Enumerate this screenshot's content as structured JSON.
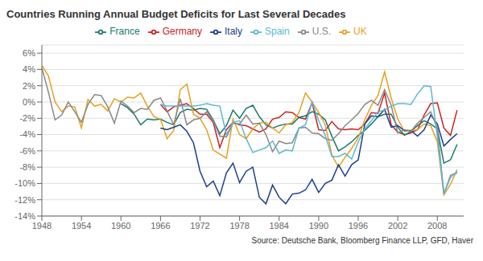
{
  "chart_data": {
    "type": "line",
    "title": "Countries Running Annual Budget Deficits for Last Several Decades",
    "annotations": [
      "Source: Deutsche Bank, Bloomberg Finance LLP, GFD, Haver"
    ],
    "xlim": [
      1948,
      2012
    ],
    "xticks": [
      1948,
      1954,
      1960,
      1966,
      1972,
      1978,
      1984,
      1990,
      1996,
      2002,
      2008
    ],
    "ylim": [
      -14,
      7
    ],
    "yticks": [
      {
        "value": 6,
        "label": "6%"
      },
      {
        "value": 4,
        "label": "4%"
      },
      {
        "value": 2,
        "label": "2%"
      },
      {
        "value": 0,
        "label": "0%"
      },
      {
        "value": -2,
        "label": "-2%"
      },
      {
        "value": -4,
        "label": "-4%"
      },
      {
        "value": -6,
        "label": "-6%"
      },
      {
        "value": -8,
        "label": "-8%"
      },
      {
        "value": -10,
        "label": "-10%"
      },
      {
        "value": -12,
        "label": "-12%"
      },
      {
        "value": -14,
        "label": "-14%"
      }
    ],
    "grid": true,
    "legend": "top",
    "series": [
      {
        "name": "Germany",
        "color": "#CC2222",
        "x": [
          1966,
          1967,
          1968,
          1969,
          1970,
          1971,
          1972,
          1973,
          1974,
          1975,
          1976,
          1977,
          1978,
          1979,
          1980,
          1981,
          1982,
          1983,
          1984,
          1985,
          1986,
          1987,
          1988,
          1989,
          1990,
          1991,
          1992,
          1993,
          1994,
          1995,
          1996,
          1997,
          1998,
          1999,
          2000,
          2001,
          2002,
          2003,
          2004,
          2005,
          2006,
          2007,
          2008,
          2009,
          2010,
          2011
        ],
        "values": [
          -0.3,
          -1.2,
          -0.6,
          -0.4,
          -0.2,
          -0.8,
          -1.5,
          -1.5,
          -2.5,
          -5.6,
          -3.4,
          -2.5,
          -2.8,
          -2.9,
          -3.3,
          -3.7,
          -3.3,
          -2.1,
          -1.9,
          -1.2,
          -1.3,
          -1.9,
          -2.1,
          -0.1,
          -3.4,
          -3.5,
          -2.4,
          -3.3,
          -3.4,
          -3.3,
          -3.4,
          -2.7,
          -1.3,
          -1.4,
          1.1,
          -2.8,
          -3.7,
          -4.0,
          -3.8,
          -3.4,
          -1.6,
          -0.2,
          -0.1,
          -3.2,
          -4.1,
          -1.0
        ]
      },
      {
        "name": "France",
        "color": "#1A7A6E",
        "x": [
          1960,
          1961,
          1962,
          1963,
          1964,
          1965,
          1966,
          1967,
          1968,
          1969,
          1970,
          1971,
          1972,
          1973,
          1974,
          1975,
          1976,
          1977,
          1978,
          1979,
          1980,
          1981,
          1982,
          1983,
          1984,
          1985,
          1986,
          1987,
          1988,
          1989,
          1990,
          1991,
          1992,
          1993,
          1994,
          1995,
          1996,
          1997,
          1998,
          1999,
          2000,
          2001,
          2002,
          2003,
          2004,
          2005,
          2006,
          2007,
          2008,
          2009,
          2010,
          2011
        ],
        "values": [
          -0.2,
          -0.7,
          -1.5,
          -2.8,
          -2.1,
          -2.2,
          -2.1,
          -2.5,
          -2.8,
          -1.3,
          -0.9,
          -1.0,
          -0.8,
          -0.9,
          -2.2,
          -3.9,
          -2.9,
          -1.0,
          -2.0,
          -0.8,
          -0.4,
          -1.8,
          -2.8,
          -3.2,
          -2.9,
          -2.7,
          -2.7,
          -1.9,
          -1.7,
          -1.2,
          -1.5,
          -2.2,
          -4.2,
          -6.0,
          -5.5,
          -4.9,
          -4.1,
          -3.5,
          -2.7,
          -1.8,
          -1.5,
          -1.5,
          -3.1,
          -4.1,
          -3.6,
          -2.9,
          -2.3,
          -2.7,
          -3.3,
          -7.5,
          -7.1,
          -5.2
        ]
      },
      {
        "name": "UK",
        "color": "#E8A020",
        "x": [
          1948,
          1949,
          1950,
          1951,
          1952,
          1953,
          1954,
          1955,
          1956,
          1957,
          1958,
          1959,
          1960,
          1961,
          1962,
          1963,
          1964,
          1965,
          1966,
          1967,
          1968,
          1969,
          1970,
          1971,
          1972,
          1973,
          1974,
          1975,
          1976,
          1977,
          1978,
          1979,
          1980,
          1981,
          1982,
          1983,
          1984,
          1985,
          1986,
          1987,
          1988,
          1989,
          1990,
          1991,
          1992,
          1993,
          1994,
          1995,
          1996,
          1997,
          1998,
          1999,
          2000,
          2001,
          2002,
          2003,
          2004,
          2005,
          2006,
          2007,
          2008,
          2009,
          2010,
          2011
        ],
        "values": [
          4.5,
          3.2,
          0.0,
          -1.2,
          -0.5,
          -0.6,
          -3.2,
          0.3,
          -0.5,
          -0.3,
          -1.1,
          0.4,
          0.0,
          0.6,
          0.5,
          1.1,
          -0.5,
          -1.8,
          -2.1,
          -4.5,
          -3.5,
          1.5,
          2.2,
          -1.5,
          -2.0,
          -3.4,
          -5.9,
          -6.4,
          -6.9,
          -2.1,
          -4.0,
          -4.5,
          -3.3,
          -2.6,
          -2.5,
          -3.2,
          -3.8,
          -2.8,
          -2.5,
          -1.3,
          1.1,
          0.0,
          -1.3,
          -2.8,
          -6.5,
          -8.0,
          -6.8,
          -5.7,
          -4.4,
          -2.2,
          -0.4,
          0.8,
          3.7,
          0.5,
          -2.1,
          -3.6,
          -3.5,
          -3.4,
          -2.7,
          -2.9,
          -4.9,
          -11.4,
          -10.1,
          -8.3
        ]
      },
      {
        "name": "Italy",
        "color": "#1A3F8A",
        "x": [
          1966,
          1967,
          1968,
          1969,
          1970,
          1971,
          1972,
          1973,
          1974,
          1975,
          1976,
          1977,
          1978,
          1979,
          1980,
          1981,
          1982,
          1983,
          1984,
          1985,
          1986,
          1987,
          1988,
          1989,
          1990,
          1991,
          1992,
          1993,
          1994,
          1995,
          1996,
          1997,
          1998,
          1999,
          2000,
          2001,
          2002,
          2003,
          2004,
          2005,
          2006,
          2007,
          2008,
          2009,
          2010,
          2011
        ],
        "values": [
          -3.2,
          -3.4,
          -3.1,
          -2.8,
          -3.6,
          -5.0,
          -8.5,
          -10.4,
          -9.7,
          -11.5,
          -8.7,
          -7.5,
          -9.9,
          -8.5,
          -8.0,
          -11.7,
          -12.5,
          -10.2,
          -11.7,
          -12.5,
          -11.3,
          -11.2,
          -10.8,
          -9.5,
          -11.1,
          -10.0,
          -9.6,
          -7.7,
          -9.1,
          -7.7,
          -7.1,
          -2.7,
          -1.7,
          -1.8,
          -0.9,
          -3.1,
          -2.9,
          -3.5,
          -3.5,
          -4.2,
          -3.4,
          -1.6,
          -2.7,
          -5.4,
          -4.6,
          -3.9
        ]
      },
      {
        "name": "U.S.",
        "color": "#888888",
        "x": [
          1948,
          1949,
          1950,
          1951,
          1952,
          1953,
          1954,
          1955,
          1956,
          1957,
          1958,
          1959,
          1960,
          1961,
          1962,
          1963,
          1964,
          1965,
          1966,
          1967,
          1968,
          1969,
          1970,
          1971,
          1972,
          1973,
          1974,
          1975,
          1976,
          1977,
          1978,
          1979,
          1980,
          1981,
          1982,
          1983,
          1984,
          1985,
          1986,
          1987,
          1988,
          1989,
          1990,
          1991,
          1992,
          1993,
          1994,
          1995,
          1996,
          1997,
          1998,
          1999,
          2000,
          2001,
          2002,
          2003,
          2004,
          2005,
          2006,
          2007,
          2008,
          2009,
          2010,
          2011
        ],
        "values": [
          4.2,
          1.2,
          -2.2,
          -1.6,
          0.0,
          -1.2,
          -2.5,
          -0.3,
          0.9,
          0.8,
          -0.6,
          -2.6,
          0.1,
          -0.5,
          -1.3,
          -0.8,
          -0.9,
          0.2,
          0.5,
          -1.1,
          -2.8,
          0.4,
          -2.8,
          -2.2,
          -2.0,
          -1.2,
          -2.3,
          -4.2,
          -4.3,
          -2.6,
          -2.7,
          -1.6,
          -2.7,
          -2.6,
          -4.0,
          -6.1,
          -4.8,
          -5.1,
          -5.0,
          -3.2,
          -3.1,
          -3.8,
          -3.9,
          -4.5,
          -4.7,
          -3.9,
          -2.9,
          -2.2,
          -1.4,
          -0.3,
          0.2,
          -0.4,
          1.5,
          -0.4,
          -3.8,
          -3.4,
          -3.6,
          -2.6,
          -1.9,
          -1.2,
          -3.2,
          -11.3,
          -9.0,
          -8.7
        ]
      },
      {
        "name": "Spain",
        "color": "#5BB8D4",
        "x": [
          1966,
          1967,
          1968,
          1969,
          1970,
          1971,
          1972,
          1973,
          1974,
          1975,
          1976,
          1977,
          1978,
          1979,
          1980,
          1981,
          1982,
          1983,
          1984,
          1985,
          1986,
          1987,
          1988,
          1989,
          1990,
          1991,
          1992,
          1993,
          1994,
          1995,
          1996,
          1997,
          1998,
          1999,
          2000,
          2001,
          2002,
          2003,
          2004,
          2005,
          2006,
          2007,
          2008,
          2009,
          2010,
          2011
        ],
        "values": [
          -0.3,
          -0.5,
          -0.5,
          -0.5,
          -0.5,
          -0.5,
          -0.4,
          -0.2,
          -0.4,
          -0.5,
          -4.0,
          -2.5,
          -2.3,
          -4.5,
          -6.2,
          -5.9,
          -5.6,
          -4.8,
          -6.3,
          -5.9,
          -6.0,
          -3.2,
          -2.8,
          0.0,
          -2.3,
          -4.1,
          -6.7,
          -6.7,
          -6.3,
          -7.0,
          -4.9,
          -3.3,
          -2.3,
          -1.2,
          -1.0,
          -0.5,
          -0.2,
          -0.2,
          -0.3,
          1.0,
          2.0,
          1.9,
          -4.2,
          -11.2,
          -9.3,
          -8.5
        ]
      }
    ]
  }
}
